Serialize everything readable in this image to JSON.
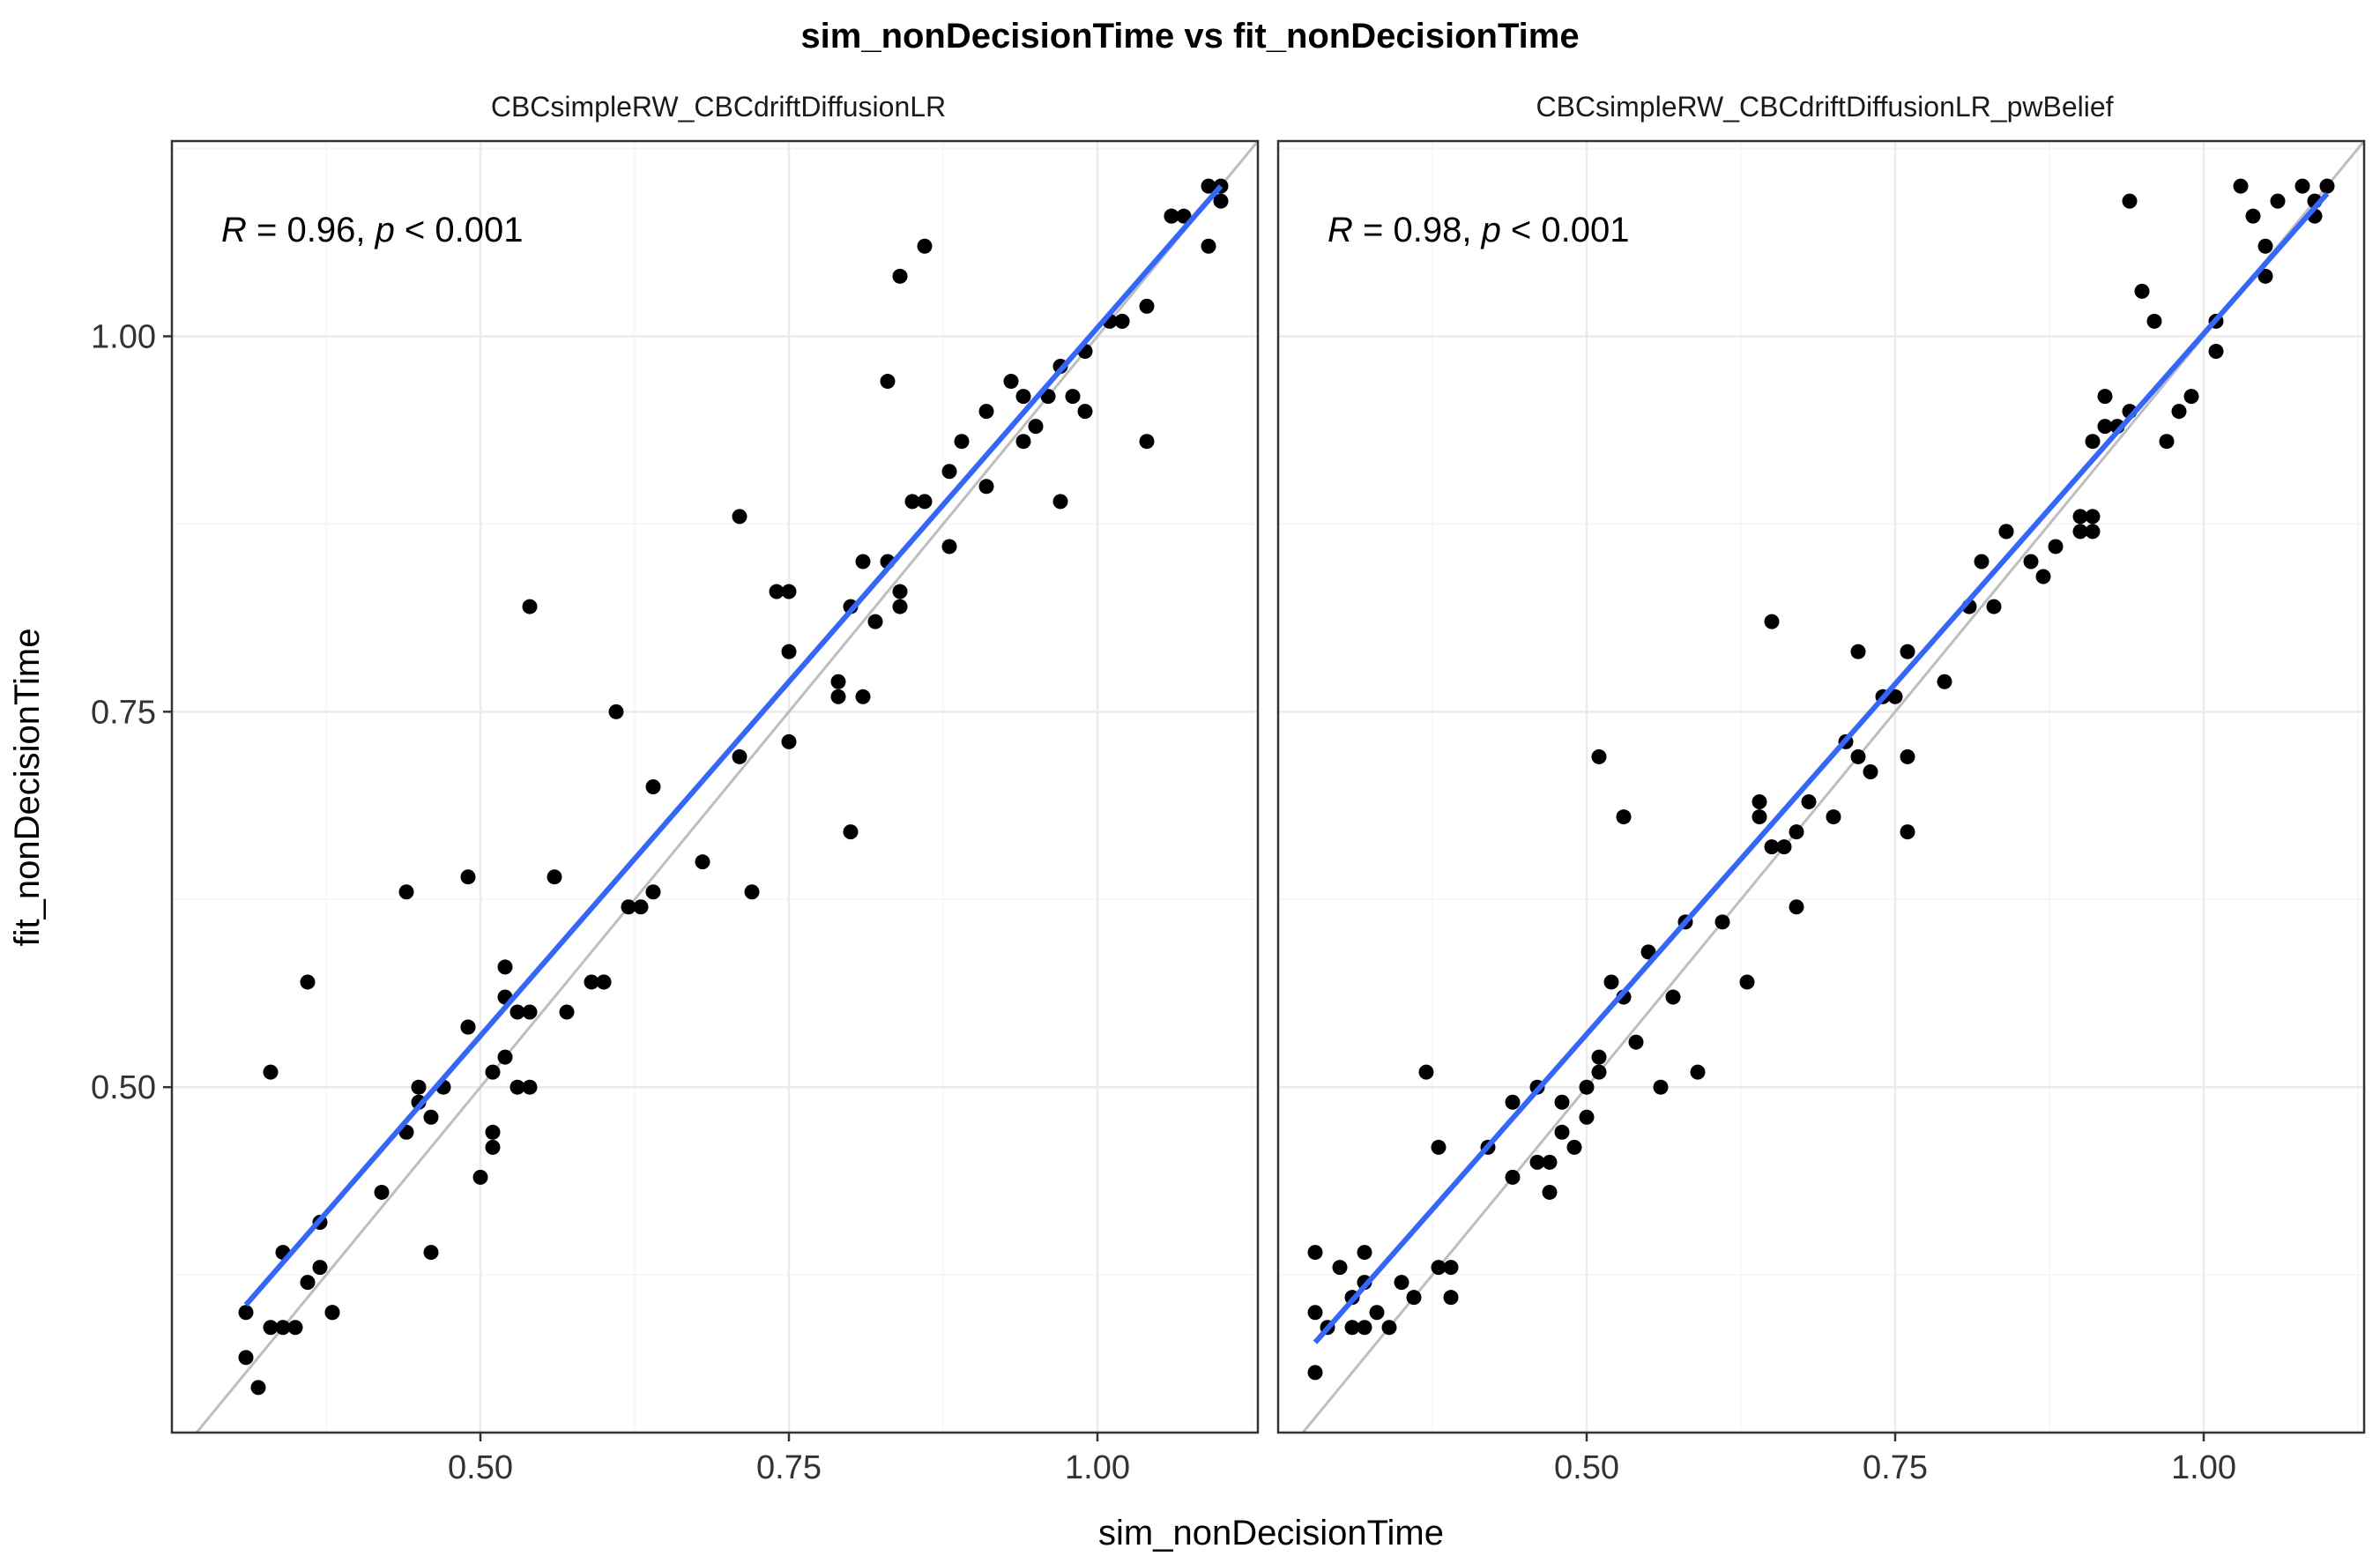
{
  "chart_data": {
    "type": "scatter",
    "title": "sim_nonDecisionTime vs fit_nonDecisionTime",
    "xlabel": "sim_nonDecisionTime",
    "ylabel": "fit_nonDecisionTime",
    "xlim": [
      0.25,
      1.13
    ],
    "ylim": [
      0.27,
      1.13
    ],
    "xticks": [
      "0.50",
      "0.75",
      "1.00"
    ],
    "yticks": [
      "0.50",
      "0.75",
      "1.00"
    ],
    "grid": true,
    "identity_line": true,
    "colors": {
      "points": "#000000",
      "fit_line": "#3366ff",
      "identity_line": "#bebebe",
      "grid": "#ebebeb",
      "panel_border": "#333333"
    },
    "panels": [
      {
        "name": "CBCsimpleRW_CBCdriftDiffusionLR",
        "stat_prefix": "R",
        "stat_value": " = 0.96, ",
        "stat_p": "p",
        "stat_rest": " < 0.001",
        "fit": {
          "x": [
            0.31,
            1.1
          ],
          "y": [
            0.355,
            1.1
          ]
        },
        "points": [
          [
            0.31,
            0.32
          ],
          [
            0.31,
            0.35
          ],
          [
            0.32,
            0.3
          ],
          [
            0.33,
            0.51
          ],
          [
            0.33,
            0.34
          ],
          [
            0.34,
            0.39
          ],
          [
            0.34,
            0.34
          ],
          [
            0.35,
            0.34
          ],
          [
            0.36,
            0.37
          ],
          [
            0.36,
            0.57
          ],
          [
            0.37,
            0.38
          ],
          [
            0.37,
            0.41
          ],
          [
            0.38,
            0.35
          ],
          [
            0.38,
            0.35
          ],
          [
            0.42,
            0.43
          ],
          [
            0.44,
            0.63
          ],
          [
            0.44,
            0.47
          ],
          [
            0.45,
            0.49
          ],
          [
            0.45,
            0.5
          ],
          [
            0.46,
            0.48
          ],
          [
            0.46,
            0.39
          ],
          [
            0.47,
            0.5
          ],
          [
            0.49,
            0.64
          ],
          [
            0.49,
            0.54
          ],
          [
            0.49,
            0.54
          ],
          [
            0.5,
            0.44
          ],
          [
            0.51,
            0.46
          ],
          [
            0.51,
            0.47
          ],
          [
            0.51,
            0.51
          ],
          [
            0.52,
            0.58
          ],
          [
            0.52,
            0.52
          ],
          [
            0.52,
            0.56
          ],
          [
            0.53,
            0.5
          ],
          [
            0.53,
            0.55
          ],
          [
            0.54,
            0.55
          ],
          [
            0.54,
            0.5
          ],
          [
            0.54,
            0.82
          ],
          [
            0.56,
            0.64
          ],
          [
            0.57,
            0.55
          ],
          [
            0.59,
            0.57
          ],
          [
            0.6,
            0.57
          ],
          [
            0.6,
            0.57
          ],
          [
            0.61,
            0.75
          ],
          [
            0.62,
            0.62
          ],
          [
            0.63,
            0.62
          ],
          [
            0.64,
            0.63
          ],
          [
            0.64,
            0.7
          ],
          [
            0.68,
            0.65
          ],
          [
            0.71,
            0.72
          ],
          [
            0.71,
            0.88
          ],
          [
            0.72,
            0.63
          ],
          [
            0.74,
            0.83
          ],
          [
            0.75,
            0.83
          ],
          [
            0.75,
            0.79
          ],
          [
            0.75,
            0.73
          ],
          [
            0.79,
            0.76
          ],
          [
            0.79,
            0.77
          ],
          [
            0.8,
            0.67
          ],
          [
            0.8,
            0.82
          ],
          [
            0.81,
            0.85
          ],
          [
            0.81,
            0.76
          ],
          [
            0.82,
            0.81
          ],
          [
            0.83,
            0.85
          ],
          [
            0.83,
            0.97
          ],
          [
            0.84,
            0.83
          ],
          [
            0.84,
            0.82
          ],
          [
            0.84,
            1.04
          ],
          [
            0.85,
            0.89
          ],
          [
            0.86,
            0.89
          ],
          [
            0.86,
            1.06
          ],
          [
            0.88,
            0.86
          ],
          [
            0.88,
            0.91
          ],
          [
            0.89,
            0.93
          ],
          [
            0.91,
            0.95
          ],
          [
            0.91,
            0.9
          ],
          [
            0.93,
            0.97
          ],
          [
            0.94,
            0.93
          ],
          [
            0.94,
            0.96
          ],
          [
            0.95,
            0.94
          ],
          [
            0.96,
            0.96
          ],
          [
            0.97,
            0.89
          ],
          [
            0.97,
            0.98
          ],
          [
            0.98,
            0.96
          ],
          [
            0.99,
            0.99
          ],
          [
            0.99,
            0.95
          ],
          [
            1.01,
            1.01
          ],
          [
            1.02,
            1.01
          ],
          [
            1.02,
            1.01
          ],
          [
            1.04,
            1.02
          ],
          [
            1.04,
            0.93
          ],
          [
            1.06,
            1.08
          ],
          [
            1.06,
            1.08
          ],
          [
            1.07,
            1.08
          ],
          [
            1.09,
            1.1
          ],
          [
            1.09,
            1.06
          ],
          [
            1.1,
            1.1
          ],
          [
            1.1,
            1.09
          ]
        ]
      },
      {
        "name": "CBCsimpleRW_CBCdriftDiffusionLR_pwBelief",
        "stat_prefix": "R",
        "stat_value": " = 0.98, ",
        "stat_p": "p",
        "stat_rest": " < 0.001",
        "fit": {
          "x": [
            0.28,
            1.1
          ],
          "y": [
            0.33,
            1.095
          ]
        },
        "points": [
          [
            0.28,
            0.39
          ],
          [
            0.28,
            0.31
          ],
          [
            0.28,
            0.35
          ],
          [
            0.29,
            0.34
          ],
          [
            0.3,
            0.38
          ],
          [
            0.31,
            0.36
          ],
          [
            0.31,
            0.34
          ],
          [
            0.32,
            0.37
          ],
          [
            0.32,
            0.39
          ],
          [
            0.32,
            0.34
          ],
          [
            0.33,
            0.35
          ],
          [
            0.34,
            0.34
          ],
          [
            0.35,
            0.37
          ],
          [
            0.36,
            0.36
          ],
          [
            0.37,
            0.51
          ],
          [
            0.38,
            0.46
          ],
          [
            0.38,
            0.38
          ],
          [
            0.39,
            0.36
          ],
          [
            0.39,
            0.38
          ],
          [
            0.42,
            0.46
          ],
          [
            0.44,
            0.44
          ],
          [
            0.44,
            0.49
          ],
          [
            0.46,
            0.5
          ],
          [
            0.46,
            0.45
          ],
          [
            0.47,
            0.43
          ],
          [
            0.47,
            0.45
          ],
          [
            0.48,
            0.47
          ],
          [
            0.48,
            0.49
          ],
          [
            0.49,
            0.46
          ],
          [
            0.5,
            0.48
          ],
          [
            0.5,
            0.5
          ],
          [
            0.51,
            0.51
          ],
          [
            0.51,
            0.52
          ],
          [
            0.51,
            0.72
          ],
          [
            0.52,
            0.57
          ],
          [
            0.53,
            0.56
          ],
          [
            0.53,
            0.68
          ],
          [
            0.54,
            0.53
          ],
          [
            0.55,
            0.59
          ],
          [
            0.56,
            0.5
          ],
          [
            0.57,
            0.56
          ],
          [
            0.58,
            0.61
          ],
          [
            0.59,
            0.51
          ],
          [
            0.61,
            0.61
          ],
          [
            0.63,
            0.57
          ],
          [
            0.64,
            0.68
          ],
          [
            0.64,
            0.69
          ],
          [
            0.65,
            0.66
          ],
          [
            0.65,
            0.81
          ],
          [
            0.66,
            0.66
          ],
          [
            0.67,
            0.67
          ],
          [
            0.67,
            0.62
          ],
          [
            0.68,
            0.69
          ],
          [
            0.7,
            0.68
          ],
          [
            0.71,
            0.73
          ],
          [
            0.72,
            0.72
          ],
          [
            0.72,
            0.79
          ],
          [
            0.73,
            0.71
          ],
          [
            0.74,
            0.76
          ],
          [
            0.75,
            0.76
          ],
          [
            0.76,
            0.72
          ],
          [
            0.76,
            0.67
          ],
          [
            0.76,
            0.79
          ],
          [
            0.79,
            0.77
          ],
          [
            0.81,
            0.82
          ],
          [
            0.82,
            0.85
          ],
          [
            0.83,
            0.82
          ],
          [
            0.84,
            0.87
          ],
          [
            0.84,
            0.87
          ],
          [
            0.86,
            0.85
          ],
          [
            0.87,
            0.84
          ],
          [
            0.88,
            0.86
          ],
          [
            0.9,
            0.87
          ],
          [
            0.9,
            0.88
          ],
          [
            0.91,
            0.87
          ],
          [
            0.91,
            0.88
          ],
          [
            0.91,
            0.93
          ],
          [
            0.92,
            0.94
          ],
          [
            0.92,
            0.96
          ],
          [
            0.93,
            0.94
          ],
          [
            0.94,
            1.09
          ],
          [
            0.94,
            0.95
          ],
          [
            0.95,
            1.03
          ],
          [
            0.96,
            1.01
          ],
          [
            0.97,
            0.93
          ],
          [
            0.98,
            0.95
          ],
          [
            0.99,
            0.96
          ],
          [
            1.01,
            0.99
          ],
          [
            1.01,
            1.01
          ],
          [
            1.03,
            1.1
          ],
          [
            1.04,
            1.08
          ],
          [
            1.05,
            1.06
          ],
          [
            1.05,
            1.04
          ],
          [
            1.06,
            1.09
          ],
          [
            1.08,
            1.1
          ],
          [
            1.09,
            1.09
          ],
          [
            1.09,
            1.08
          ],
          [
            1.1,
            1.1
          ]
        ]
      }
    ]
  }
}
